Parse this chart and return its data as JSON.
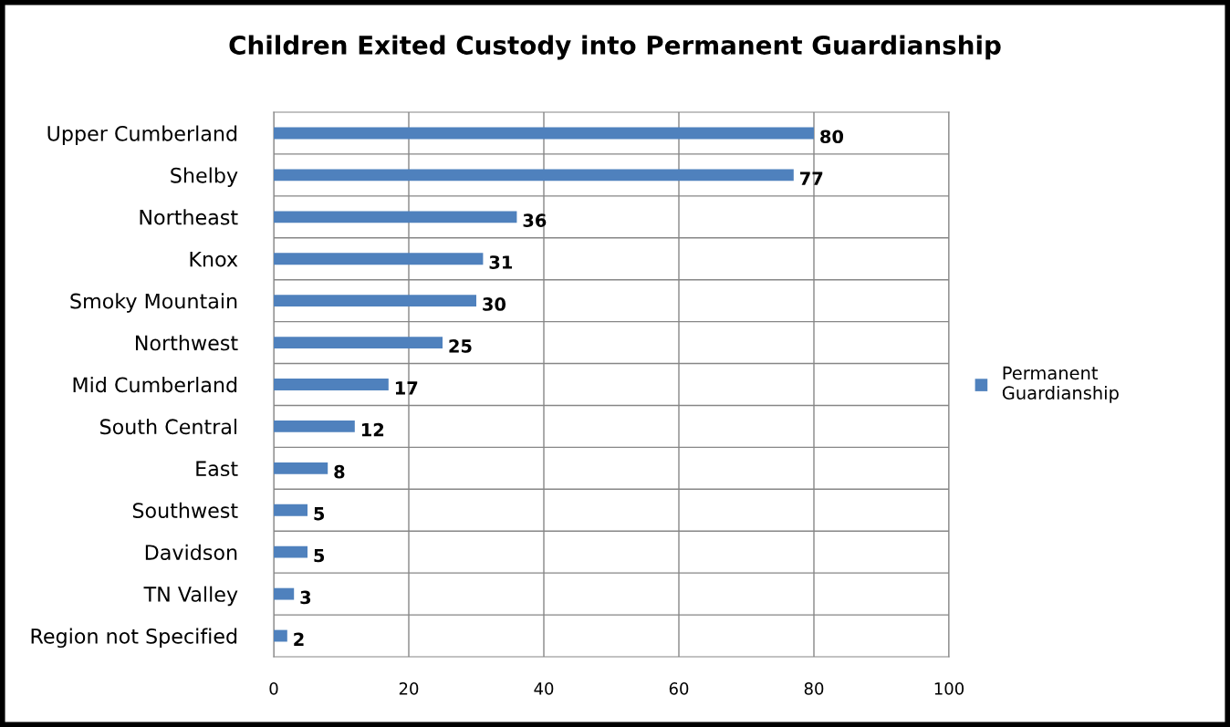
{
  "chart_data": {
    "type": "bar",
    "orientation": "horizontal",
    "title": "Children Exited Custody into Permanent Guardianship",
    "categories": [
      "Upper Cumberland",
      "Shelby",
      "Northeast",
      "Knox",
      "Smoky Mountain",
      "Northwest",
      "Mid Cumberland",
      "South Central",
      "East",
      "Southwest",
      "Davidson",
      "TN Valley",
      "Region not Specified"
    ],
    "series": [
      {
        "name": "Permanent Guardianship",
        "color": "#4f81bd",
        "values": [
          80,
          77,
          36,
          31,
          30,
          25,
          17,
          12,
          8,
          5,
          5,
          3,
          2
        ]
      }
    ],
    "xlim": [
      0,
      100
    ],
    "xticks": [
      0,
      20,
      40,
      60,
      80,
      100
    ],
    "grid": true,
    "legend": "right",
    "data_labels": true
  }
}
